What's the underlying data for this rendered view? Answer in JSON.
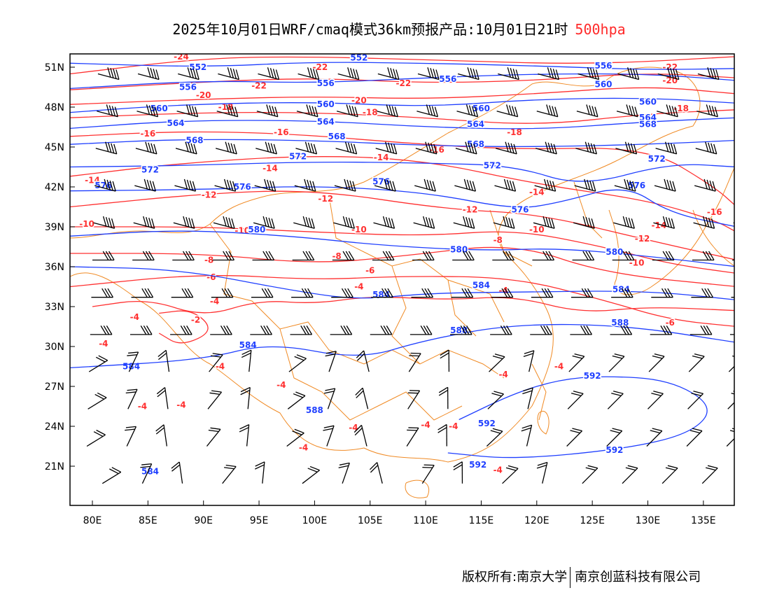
{
  "title": {
    "main": "2025年10月01日WRF/cmaq模式36km预报产品:10月01日21时",
    "level": "500hpa"
  },
  "footer": {
    "left": "版权所有:南京大学",
    "right": "南京创蓝科技有限公司"
  },
  "colors": {
    "height": "#1f3fff",
    "temperature": "#ff3030",
    "boundary": "#f08a24",
    "wind": "#000000",
    "level": "#ff2a2a"
  },
  "axes": {
    "x_ticks": [
      {
        "lon": 80,
        "label": "80E"
      },
      {
        "lon": 85,
        "label": "85E"
      },
      {
        "lon": 90,
        "label": "90E"
      },
      {
        "lon": 95,
        "label": "95E"
      },
      {
        "lon": 100,
        "label": "100E"
      },
      {
        "lon": 105,
        "label": "105E"
      },
      {
        "lon": 110,
        "label": "110E"
      },
      {
        "lon": 115,
        "label": "115E"
      },
      {
        "lon": 120,
        "label": "120E"
      },
      {
        "lon": 125,
        "label": "125E"
      },
      {
        "lon": 130,
        "label": "130E"
      },
      {
        "lon": 135,
        "label": "135E"
      }
    ],
    "y_ticks": [
      {
        "lat": 51,
        "label": "51N"
      },
      {
        "lat": 48,
        "label": "48N"
      },
      {
        "lat": 45,
        "label": "45N"
      },
      {
        "lat": 42,
        "label": "42N"
      },
      {
        "lat": 39,
        "label": "39N"
      },
      {
        "lat": 36,
        "label": "36N"
      },
      {
        "lat": 33,
        "label": "33N"
      },
      {
        "lat": 30,
        "label": "30N"
      },
      {
        "lat": 27,
        "label": "27N"
      },
      {
        "lat": 24,
        "label": "24N"
      },
      {
        "lat": 21,
        "label": "21N"
      }
    ]
  },
  "height_contours": [
    {
      "value": "552",
      "pts": [
        [
          78,
          51.3
        ],
        [
          90,
          51
        ],
        [
          100,
          51.4
        ],
        [
          110,
          51.3
        ],
        [
          120,
          51.1
        ],
        [
          130,
          50.8
        ],
        [
          138,
          50.9
        ]
      ],
      "labels": [
        [
          89.5,
          51
        ],
        [
          104,
          51.7
        ]
      ]
    },
    {
      "value": "556",
      "pts": [
        [
          78,
          49.4
        ],
        [
          90,
          50
        ],
        [
          100,
          49.8
        ],
        [
          110,
          50.2
        ],
        [
          120,
          50.5
        ],
        [
          130,
          50.5
        ],
        [
          138,
          50
        ]
      ],
      "labels": [
        [
          88.6,
          49.5
        ],
        [
          101,
          49.8
        ],
        [
          112,
          50.1
        ],
        [
          126,
          51.1
        ]
      ]
    },
    {
      "value": "560",
      "pts": [
        [
          78,
          47.6
        ],
        [
          88,
          48.2
        ],
        [
          100,
          48.4
        ],
        [
          110,
          48
        ],
        [
          120,
          48.6
        ],
        [
          130,
          48.7
        ],
        [
          138,
          48.3
        ]
      ],
      "labels": [
        [
          86,
          47.9
        ],
        [
          101,
          48.2
        ],
        [
          115,
          47.9
        ],
        [
          126,
          49.7
        ],
        [
          130,
          48.4
        ]
      ]
    },
    {
      "value": "564",
      "pts": [
        [
          78,
          46.4
        ],
        [
          88,
          47
        ],
        [
          100,
          47
        ],
        [
          110,
          46.5
        ],
        [
          120,
          46.3
        ],
        [
          130,
          46.9
        ],
        [
          138,
          47.2
        ]
      ],
      "labels": [
        [
          87.5,
          46.8
        ],
        [
          101,
          46.9
        ],
        [
          114.5,
          46.7
        ],
        [
          130,
          47.2
        ]
      ]
    },
    {
      "value": "568",
      "pts": [
        [
          78,
          45.2
        ],
        [
          88,
          45.6
        ],
        [
          100,
          45.5
        ],
        [
          110,
          45.1
        ],
        [
          120,
          45
        ],
        [
          130,
          45.2
        ],
        [
          138,
          45.5
        ]
      ],
      "labels": [
        [
          89.2,
          45.5
        ],
        [
          102,
          45.8
        ],
        [
          114.5,
          45.2
        ],
        [
          130,
          46.7
        ]
      ]
    },
    {
      "value": "572",
      "pts": [
        [
          78,
          43.5
        ],
        [
          88,
          43.6
        ],
        [
          100,
          43.9
        ],
        [
          110,
          43.8
        ],
        [
          118,
          43.6
        ],
        [
          124,
          42
        ],
        [
          132,
          43.8
        ],
        [
          138,
          43.5
        ]
      ],
      "labels": [
        [
          85.2,
          43.3
        ],
        [
          98.5,
          44.3
        ],
        [
          116,
          43.6
        ],
        [
          130.8,
          44.1
        ]
      ]
    },
    {
      "value": "576",
      "pts": [
        [
          78,
          41.7
        ],
        [
          90,
          41.8
        ],
        [
          100,
          42.1
        ],
        [
          110,
          41.6
        ],
        [
          118,
          40.3
        ],
        [
          122,
          40.8
        ],
        [
          128,
          42.2
        ],
        [
          132,
          40
        ],
        [
          138,
          39
        ]
      ],
      "labels": [
        [
          81,
          42.1
        ],
        [
          93.5,
          42
        ],
        [
          106,
          42.4
        ],
        [
          118.5,
          40.3
        ],
        [
          129,
          42.1
        ]
      ]
    },
    {
      "value": "580",
      "pts": [
        [
          78,
          38.3
        ],
        [
          88,
          38.8
        ],
        [
          98,
          38.3
        ],
        [
          106,
          37.6
        ],
        [
          115,
          37.2
        ],
        [
          122,
          37.4
        ],
        [
          130,
          36.8
        ],
        [
          138,
          36
        ]
      ],
      "labels": [
        [
          94.8,
          38.8
        ],
        [
          113,
          37.3
        ],
        [
          127,
          37.1
        ]
      ]
    },
    {
      "value": "584",
      "pts": [
        [
          78,
          36
        ],
        [
          88,
          35.8
        ],
        [
          98,
          34.2
        ],
        [
          104,
          33.5
        ],
        [
          110,
          34
        ],
        [
          118,
          34.1
        ],
        [
          130,
          34.2
        ],
        [
          138,
          33.5
        ]
      ],
      "labels": [
        [
          106,
          33.9
        ],
        [
          115,
          34.6
        ],
        [
          127.6,
          34.3
        ],
        [
          94,
          30.1
        ],
        [
          83.5,
          28.5
        ],
        [
          85.2,
          20.6
        ]
      ]
    },
    {
      "value": "588",
      "pts": [
        [
          78,
          28.4
        ],
        [
          90,
          29
        ],
        [
          96,
          30.3
        ],
        [
          104,
          29
        ],
        [
          110,
          30.5
        ],
        [
          118,
          31.7
        ],
        [
          128,
          31.6
        ],
        [
          138,
          30.3
        ]
      ],
      "labels": [
        [
          113,
          31.2
        ],
        [
          127.5,
          31.8
        ],
        [
          100,
          25.2
        ]
      ]
    },
    {
      "value": "592",
      "pts": [
        [
          113,
          24.5
        ],
        [
          118,
          26.5
        ],
        [
          122,
          27.5
        ],
        [
          126,
          27.8
        ],
        [
          132,
          27.5
        ],
        [
          136,
          25.5
        ],
        [
          134,
          23.5
        ],
        [
          128,
          22.3
        ],
        [
          118,
          21.5
        ],
        [
          112,
          22
        ]
      ],
      "labels": [
        [
          125,
          27.8
        ],
        [
          115.5,
          24.2
        ],
        [
          127,
          22.2
        ],
        [
          114.7,
          21.1
        ]
      ]
    }
  ],
  "temperature_contours": [
    {
      "value": "-24",
      "pts": [
        [
          78,
          50.5
        ],
        [
          90,
          51.7
        ],
        [
          100,
          51.8
        ],
        [
          112,
          51.5
        ],
        [
          125,
          51.2
        ],
        [
          138,
          51.8
        ]
      ],
      "labels": [
        [
          88,
          51.8
        ]
      ]
    },
    {
      "value": "-22",
      "pts": [
        [
          78,
          49.3
        ],
        [
          90,
          49.9
        ],
        [
          100,
          50.2
        ],
        [
          110,
          49.8
        ],
        [
          120,
          50
        ],
        [
          130,
          50.6
        ],
        [
          138,
          50.2
        ]
      ],
      "labels": [
        [
          95,
          49.6
        ],
        [
          100.5,
          51
        ],
        [
          108,
          49.8
        ],
        [
          132,
          51
        ]
      ]
    },
    {
      "value": "-20",
      "pts": [
        [
          78,
          48.2
        ],
        [
          90,
          48.6
        ],
        [
          100,
          48.8
        ],
        [
          110,
          48.6
        ],
        [
          120,
          49
        ],
        [
          130,
          49.6
        ],
        [
          138,
          49
        ]
      ],
      "labels": [
        [
          90,
          48.9
        ],
        [
          104,
          48.5
        ],
        [
          132,
          50
        ]
      ]
    },
    {
      "value": "-18",
      "pts": [
        [
          78,
          47.2
        ],
        [
          90,
          47.6
        ],
        [
          100,
          47.6
        ],
        [
          110,
          47.2
        ],
        [
          120,
          46.6
        ],
        [
          130,
          47.5
        ],
        [
          138,
          47.8
        ]
      ],
      "labels": [
        [
          92,
          48
        ],
        [
          105,
          47.6
        ],
        [
          118,
          46.1
        ],
        [
          133,
          47.9
        ]
      ]
    },
    {
      "value": "-16",
      "pts": [
        [
          78,
          45.8
        ],
        [
          88,
          46.2
        ],
        [
          98,
          46
        ],
        [
          108,
          45.3
        ],
        [
          118,
          44.8
        ],
        [
          130,
          45
        ],
        [
          136,
          42
        ],
        [
          138,
          40.5
        ]
      ],
      "labels": [
        [
          85,
          46
        ],
        [
          97,
          46.1
        ],
        [
          111,
          44.8
        ],
        [
          136,
          40.1
        ]
      ]
    },
    {
      "value": "-14",
      "pts": [
        [
          78,
          42.8
        ],
        [
          88,
          43.8
        ],
        [
          100,
          44.4
        ],
        [
          110,
          44
        ],
        [
          120,
          42.2
        ],
        [
          130,
          41
        ],
        [
          136,
          39.5
        ],
        [
          138,
          38.6
        ]
      ],
      "labels": [
        [
          80,
          42.5
        ],
        [
          96,
          43.4
        ],
        [
          106,
          44.2
        ],
        [
          120,
          41.6
        ],
        [
          131,
          39.1
        ]
      ]
    },
    {
      "value": "-12",
      "pts": [
        [
          78,
          40.5
        ],
        [
          90,
          41.5
        ],
        [
          100,
          41.8
        ],
        [
          112,
          40.3
        ],
        [
          120,
          40
        ],
        [
          130,
          38
        ],
        [
          138,
          36.5
        ]
      ],
      "labels": [
        [
          90.5,
          41.4
        ],
        [
          101,
          41.1
        ],
        [
          114,
          40.3
        ],
        [
          129.5,
          38.1
        ]
      ]
    },
    {
      "value": "-10",
      "pts": [
        [
          78,
          39
        ],
        [
          90,
          39
        ],
        [
          100,
          38.6
        ],
        [
          110,
          38.3
        ],
        [
          118,
          38.8
        ],
        [
          126,
          37.5
        ],
        [
          132,
          36.2
        ],
        [
          138,
          35.5
        ]
      ],
      "labels": [
        [
          79.5,
          39.2
        ],
        [
          93.5,
          38.7
        ],
        [
          104,
          38.8
        ],
        [
          120,
          38.8
        ],
        [
          129,
          36.3
        ]
      ]
    },
    {
      "value": "-8",
      "pts": [
        [
          78,
          37
        ],
        [
          90,
          37
        ],
        [
          100,
          36.2
        ],
        [
          108,
          36.8
        ],
        [
          118,
          37.8
        ],
        [
          126,
          35.5
        ],
        [
          138,
          34.5
        ]
      ],
      "labels": [
        [
          90.5,
          36.5
        ],
        [
          102,
          36.8
        ],
        [
          116.5,
          38
        ]
      ]
    },
    {
      "value": "-6",
      "pts": [
        [
          78,
          34.5
        ],
        [
          90,
          35.5
        ],
        [
          100,
          35
        ],
        [
          108,
          35.3
        ],
        [
          118,
          35.2
        ],
        [
          126,
          33.5
        ],
        [
          132,
          32
        ],
        [
          138,
          31.5
        ]
      ],
      "labels": [
        [
          90.7,
          35.2
        ],
        [
          105,
          35.7
        ],
        [
          132,
          31.8
        ]
      ]
    },
    {
      "value": "-4",
      "pts": [
        [
          80,
          33
        ],
        [
          85,
          33.6
        ],
        [
          90,
          32.2
        ],
        [
          95,
          33.5
        ],
        [
          100,
          33.2
        ],
        [
          105,
          33.8
        ],
        [
          112,
          33.5
        ],
        [
          118,
          33.8
        ],
        [
          124,
          32.5
        ],
        [
          130,
          33
        ],
        [
          138,
          32.7
        ]
      ],
      "labels": [
        [
          81,
          30.2
        ],
        [
          83.8,
          32.2
        ],
        [
          91,
          33.4
        ],
        [
          104,
          34.5
        ],
        [
          117,
          34.2
        ],
        [
          91.5,
          28.5
        ],
        [
          84.5,
          25.5
        ],
        [
          88,
          25.6
        ],
        [
          97,
          27.1
        ],
        [
          103.5,
          23.9
        ],
        [
          110,
          24.1
        ],
        [
          112.5,
          24
        ],
        [
          117,
          27.9
        ],
        [
          122,
          28.5
        ],
        [
          99,
          22.4
        ],
        [
          116.5,
          20.7
        ]
      ]
    },
    {
      "value": "-2",
      "pts": [
        [
          86,
          32.5
        ],
        [
          89,
          32.8
        ],
        [
          91,
          31.2
        ],
        [
          88,
          30
        ],
        [
          86,
          31
        ]
      ],
      "labels": [
        [
          89.3,
          32
        ]
      ]
    }
  ]
}
